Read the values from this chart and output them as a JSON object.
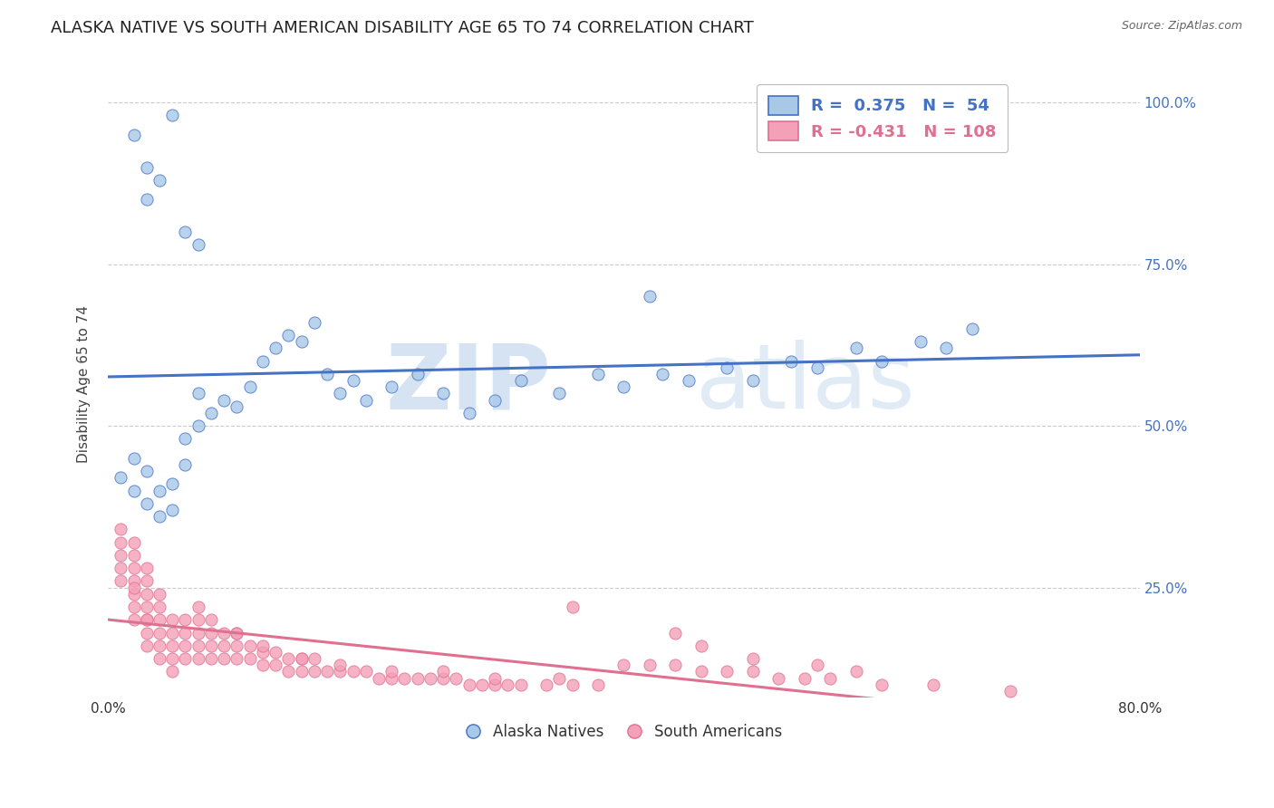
{
  "title": "ALASKA NATIVE VS SOUTH AMERICAN DISABILITY AGE 65 TO 74 CORRELATION CHART",
  "source": "Source: ZipAtlas.com",
  "ylabel": "Disability Age 65 to 74",
  "xlim": [
    0.0,
    0.8
  ],
  "ylim": [
    0.08,
    1.05
  ],
  "xticks": [
    0.0,
    0.1,
    0.2,
    0.3,
    0.4,
    0.5,
    0.6,
    0.7,
    0.8
  ],
  "xticklabels": [
    "0.0%",
    "",
    "",
    "",
    "",
    "",
    "",
    "",
    "80.0%"
  ],
  "yticks": [
    0.25,
    0.5,
    0.75,
    1.0
  ],
  "yticklabels": [
    "25.0%",
    "50.0%",
    "75.0%",
    "100.0%"
  ],
  "watermark_zip": "ZIP",
  "watermark_atlas": "atlas",
  "R_blue": 0.375,
  "N_blue": 54,
  "R_pink": -0.431,
  "N_pink": 108,
  "blue_color": "#A8C8E8",
  "pink_color": "#F4A0B8",
  "blue_line_color": "#4472C4",
  "pink_line_color": "#E07090",
  "title_fontsize": 13,
  "axis_label_fontsize": 11,
  "tick_fontsize": 11,
  "background_color": "#FFFFFF",
  "grid_color": "#CCCCCC",
  "blue_scatter_x": [
    0.01,
    0.02,
    0.02,
    0.03,
    0.03,
    0.04,
    0.04,
    0.05,
    0.05,
    0.06,
    0.06,
    0.07,
    0.07,
    0.08,
    0.09,
    0.1,
    0.11,
    0.12,
    0.13,
    0.14,
    0.15,
    0.16,
    0.17,
    0.18,
    0.19,
    0.2,
    0.22,
    0.24,
    0.26,
    0.28,
    0.3,
    0.32,
    0.35,
    0.38,
    0.4,
    0.43,
    0.45,
    0.48,
    0.5,
    0.53,
    0.55,
    0.58,
    0.6,
    0.63,
    0.65,
    0.03,
    0.04,
    0.03,
    0.02,
    0.05,
    0.06,
    0.07,
    0.67,
    0.42
  ],
  "blue_scatter_y": [
    0.42,
    0.4,
    0.45,
    0.38,
    0.43,
    0.36,
    0.4,
    0.37,
    0.41,
    0.44,
    0.48,
    0.5,
    0.55,
    0.52,
    0.54,
    0.53,
    0.56,
    0.6,
    0.62,
    0.64,
    0.63,
    0.66,
    0.58,
    0.55,
    0.57,
    0.54,
    0.56,
    0.58,
    0.55,
    0.52,
    0.54,
    0.57,
    0.55,
    0.58,
    0.56,
    0.58,
    0.57,
    0.59,
    0.57,
    0.6,
    0.59,
    0.62,
    0.6,
    0.63,
    0.62,
    0.85,
    0.88,
    0.9,
    0.95,
    0.98,
    0.8,
    0.78,
    0.65,
    0.7
  ],
  "pink_scatter_x": [
    0.01,
    0.01,
    0.01,
    0.01,
    0.01,
    0.02,
    0.02,
    0.02,
    0.02,
    0.02,
    0.02,
    0.02,
    0.02,
    0.03,
    0.03,
    0.03,
    0.03,
    0.03,
    0.03,
    0.03,
    0.03,
    0.04,
    0.04,
    0.04,
    0.04,
    0.04,
    0.04,
    0.05,
    0.05,
    0.05,
    0.05,
    0.05,
    0.06,
    0.06,
    0.06,
    0.06,
    0.07,
    0.07,
    0.07,
    0.07,
    0.08,
    0.08,
    0.08,
    0.09,
    0.09,
    0.09,
    0.1,
    0.1,
    0.1,
    0.11,
    0.11,
    0.12,
    0.12,
    0.13,
    0.13,
    0.14,
    0.14,
    0.15,
    0.15,
    0.16,
    0.16,
    0.17,
    0.18,
    0.19,
    0.2,
    0.21,
    0.22,
    0.23,
    0.24,
    0.25,
    0.26,
    0.27,
    0.28,
    0.29,
    0.3,
    0.31,
    0.32,
    0.34,
    0.36,
    0.38,
    0.4,
    0.42,
    0.44,
    0.46,
    0.48,
    0.5,
    0.52,
    0.54,
    0.56,
    0.6,
    0.07,
    0.08,
    0.1,
    0.12,
    0.15,
    0.18,
    0.22,
    0.26,
    0.3,
    0.35,
    0.64,
    0.7,
    0.36,
    0.44,
    0.46,
    0.5,
    0.55,
    0.58
  ],
  "pink_scatter_y": [
    0.28,
    0.3,
    0.32,
    0.34,
    0.26,
    0.24,
    0.26,
    0.28,
    0.3,
    0.32,
    0.22,
    0.2,
    0.25,
    0.2,
    0.22,
    0.24,
    0.26,
    0.28,
    0.18,
    0.2,
    0.16,
    0.18,
    0.2,
    0.22,
    0.24,
    0.16,
    0.14,
    0.16,
    0.18,
    0.2,
    0.14,
    0.12,
    0.14,
    0.16,
    0.18,
    0.2,
    0.14,
    0.16,
    0.18,
    0.2,
    0.14,
    0.16,
    0.18,
    0.14,
    0.16,
    0.18,
    0.14,
    0.16,
    0.18,
    0.14,
    0.16,
    0.13,
    0.15,
    0.13,
    0.15,
    0.12,
    0.14,
    0.12,
    0.14,
    0.12,
    0.14,
    0.12,
    0.12,
    0.12,
    0.12,
    0.11,
    0.11,
    0.11,
    0.11,
    0.11,
    0.11,
    0.11,
    0.1,
    0.1,
    0.1,
    0.1,
    0.1,
    0.1,
    0.1,
    0.1,
    0.13,
    0.13,
    0.13,
    0.12,
    0.12,
    0.12,
    0.11,
    0.11,
    0.11,
    0.1,
    0.22,
    0.2,
    0.18,
    0.16,
    0.14,
    0.13,
    0.12,
    0.12,
    0.11,
    0.11,
    0.1,
    0.09,
    0.22,
    0.18,
    0.16,
    0.14,
    0.13,
    0.12
  ]
}
